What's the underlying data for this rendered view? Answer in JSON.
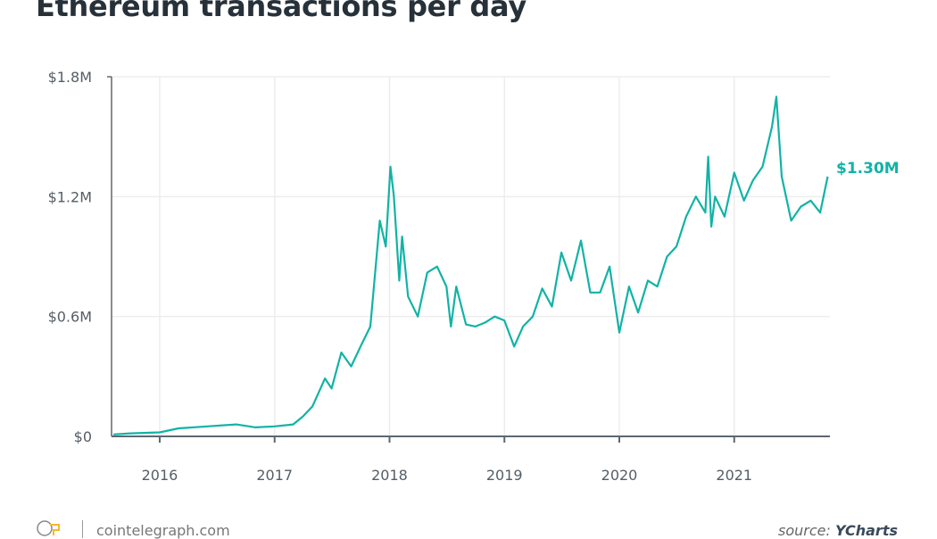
{
  "chart_data": {
    "type": "line",
    "title": "Ethereum transactions per day",
    "xlabel": "",
    "ylabel": "",
    "ylim": [
      0,
      1800000
    ],
    "y_ticks": [
      "$0",
      "$0.6M",
      "$1.2M",
      "$1.8M"
    ],
    "y_tick_values": [
      0,
      600000,
      1200000,
      1800000
    ],
    "x_ticks": [
      "2016",
      "2017",
      "2018",
      "2019",
      "2020",
      "2021"
    ],
    "xlim": [
      "2015-08-01",
      "2021-11-01"
    ],
    "grid": "vertical and horizontal, light",
    "color": "#11b3a6",
    "end_label": "$1.30M",
    "series": [
      {
        "x": [
          "2015-08-07",
          "2015-10-01",
          "2016-01-01",
          "2016-03-01",
          "2016-06-01",
          "2016-09-01",
          "2016-11-01",
          "2017-01-01",
          "2017-03-01",
          "2017-04-01",
          "2017-05-01",
          "2017-06-10",
          "2017-07-01",
          "2017-08-01",
          "2017-09-01",
          "2017-10-01",
          "2017-11-01",
          "2017-12-01",
          "2017-12-20",
          "2018-01-04",
          "2018-01-15",
          "2018-02-01",
          "2018-02-10",
          "2018-03-01",
          "2018-04-01",
          "2018-05-01",
          "2018-06-01",
          "2018-07-01",
          "2018-07-15",
          "2018-08-01",
          "2018-09-01",
          "2018-10-01",
          "2018-11-01",
          "2018-12-01",
          "2019-01-01",
          "2019-02-01",
          "2019-03-01",
          "2019-04-01",
          "2019-05-01",
          "2019-06-01",
          "2019-07-01",
          "2019-08-01",
          "2019-09-01",
          "2019-10-01",
          "2019-11-01",
          "2019-12-01",
          "2020-01-01",
          "2020-02-01",
          "2020-03-01",
          "2020-04-01",
          "2020-05-01",
          "2020-06-01",
          "2020-07-01",
          "2020-08-01",
          "2020-09-01",
          "2020-10-01",
          "2020-10-10",
          "2020-10-20",
          "2020-11-01",
          "2020-12-01",
          "2021-01-01",
          "2021-02-01",
          "2021-03-01",
          "2021-04-01",
          "2021-05-01",
          "2021-05-15",
          "2021-06-01",
          "2021-07-01",
          "2021-08-01",
          "2021-09-01",
          "2021-10-01",
          "2021-10-25"
        ],
        "values": [
          10000,
          15000,
          20000,
          40000,
          50000,
          60000,
          45000,
          50000,
          60000,
          100000,
          150000,
          290000,
          240000,
          420000,
          350000,
          450000,
          550000,
          1080000,
          950000,
          1350000,
          1200000,
          780000,
          1000000,
          700000,
          600000,
          820000,
          850000,
          750000,
          550000,
          750000,
          560000,
          550000,
          570000,
          600000,
          580000,
          450000,
          550000,
          600000,
          740000,
          650000,
          920000,
          780000,
          980000,
          720000,
          720000,
          850000,
          520000,
          750000,
          620000,
          780000,
          750000,
          900000,
          950000,
          1100000,
          1200000,
          1120000,
          1400000,
          1050000,
          1200000,
          1100000,
          1320000,
          1180000,
          1280000,
          1350000,
          1550000,
          1700000,
          1300000,
          1080000,
          1150000,
          1180000,
          1120000,
          1300000
        ]
      }
    ]
  },
  "footer": {
    "site": "cointelegraph.com",
    "source_prefix": "source: ",
    "source_name": "YCharts"
  }
}
